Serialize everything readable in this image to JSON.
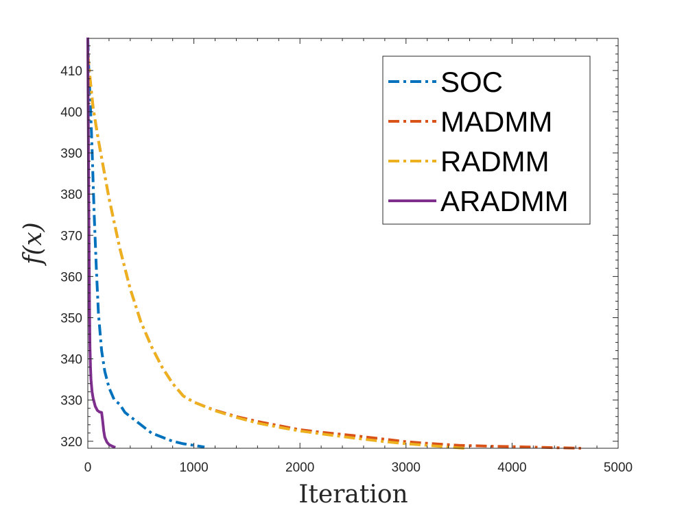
{
  "chart_data": {
    "type": "line",
    "title": "",
    "xlabel": "Iteration",
    "ylabel": "f(x)",
    "xlim": [
      0,
      5000
    ],
    "ylim": [
      318.3,
      417.8
    ],
    "xticks": [
      0,
      1000,
      2000,
      3000,
      4000,
      5000
    ],
    "xtick_labels": [
      "0",
      "1000",
      "2000",
      "3000",
      "4000",
      "5000"
    ],
    "yticks": [
      320,
      330,
      340,
      350,
      360,
      370,
      380,
      390,
      400,
      410
    ],
    "ytick_labels": [
      "320",
      "330",
      "340",
      "350",
      "360",
      "370",
      "380",
      "390",
      "400",
      "410"
    ],
    "legend_position": "top-right",
    "series": [
      {
        "name": "SOC",
        "color": "#0072BD",
        "style": "dashdot",
        "x": [
          0,
          10,
          20,
          30,
          40,
          50,
          60,
          80,
          100,
          130,
          160,
          200,
          250,
          300,
          350,
          400,
          500,
          600,
          700,
          800,
          900,
          1000,
          1100
        ],
        "y": [
          417.5,
          410,
          404,
          398,
          391,
          383,
          375,
          362,
          351,
          342,
          337,
          333,
          330,
          329,
          327,
          326,
          324,
          322,
          321,
          320,
          319.4,
          319,
          318.6
        ]
      },
      {
        "name": "MADMM",
        "color": "#D95319",
        "style": "dashdot",
        "x": [
          0,
          25,
          50,
          100,
          150,
          200,
          300,
          400,
          500,
          600,
          700,
          800,
          900,
          1000,
          1200,
          1400,
          1600,
          1800,
          2000,
          2200,
          2500,
          2800,
          3000,
          3200,
          3500,
          3800,
          4000,
          4300,
          4650
        ],
        "y": [
          414,
          407,
          401,
          393,
          386,
          379,
          367,
          357,
          349,
          343,
          338,
          334,
          331,
          329.5,
          327.5,
          326,
          324.8,
          323.8,
          322.8,
          322.2,
          321.4,
          320.5,
          319.9,
          319.5,
          319,
          318.8,
          318.7,
          318.5,
          318.3
        ]
      },
      {
        "name": "RADMM",
        "color": "#EDB120",
        "style": "dashdot",
        "x": [
          0,
          25,
          50,
          100,
          150,
          200,
          300,
          400,
          500,
          600,
          700,
          800,
          900,
          1000,
          1200,
          1400,
          1600,
          1800,
          2000,
          2200,
          2500,
          2800,
          3000,
          3200,
          3400,
          3550
        ],
        "y": [
          414,
          407,
          401,
          393,
          386,
          379,
          367,
          357,
          349,
          343,
          338,
          334,
          331,
          329.5,
          327.4,
          325.8,
          324.4,
          323.4,
          322.5,
          321.8,
          320.8,
          319.9,
          319.4,
          319,
          318.6,
          318.3
        ]
      },
      {
        "name": "ARADMM",
        "color": "#7E2F8E",
        "style": "solid",
        "x": [
          0,
          2,
          5,
          8,
          12,
          16,
          20,
          25,
          30,
          40,
          50,
          70,
          90,
          110,
          130,
          140,
          150,
          160,
          180,
          200,
          230,
          260
        ],
        "y": [
          418,
          408,
          395,
          380,
          365,
          352,
          343,
          338,
          335,
          332,
          330.5,
          328.5,
          327.5,
          327.1,
          327,
          325,
          322.5,
          321,
          319.8,
          319.2,
          318.8,
          318.5
        ]
      }
    ]
  }
}
